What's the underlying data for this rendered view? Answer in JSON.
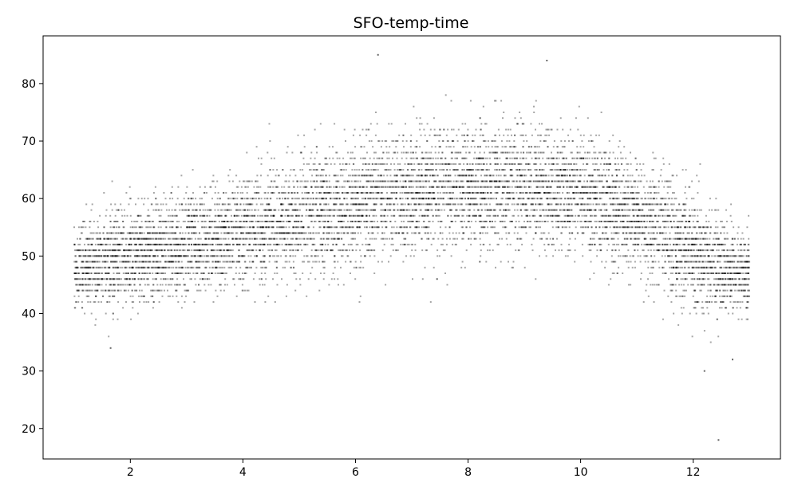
{
  "chart_data": {
    "type": "scatter",
    "title": "SFO-temp-time",
    "xlabel": "",
    "ylabel": "",
    "xlim": [
      0.45,
      13.55
    ],
    "ylim": [
      14.7,
      88.3
    ],
    "x_ticks": [
      2,
      4,
      6,
      8,
      10,
      12
    ],
    "y_ticks": [
      20,
      30,
      40,
      50,
      60,
      70,
      80
    ],
    "x_tick_labels": [
      "2",
      "4",
      "6",
      "8",
      "10",
      "12"
    ],
    "y_tick_labels": [
      "20",
      "30",
      "40",
      "50",
      "60",
      "70",
      "80"
    ],
    "grid": false,
    "legend": "none",
    "point_color": "#000000",
    "point_alpha": 0.35,
    "x_domain": [
      1.0,
      13.0
    ],
    "y_step": 1,
    "density_profile": {
      "x": [
        1.0,
        1.5,
        2.0,
        2.5,
        3.0,
        3.5,
        4.0,
        4.5,
        5.0,
        5.5,
        6.0,
        6.5,
        7.0,
        7.5,
        8.0,
        8.5,
        9.0,
        9.5,
        10.0,
        10.5,
        11.0,
        11.5,
        12.0,
        12.5,
        13.0
      ],
      "mean": [
        48,
        49,
        50,
        51,
        52,
        53,
        54,
        56,
        57,
        58,
        59,
        60,
        61,
        61.5,
        62,
        62,
        62,
        61.5,
        61,
        59,
        57,
        54,
        51,
        48,
        47
      ],
      "sd": [
        3.5,
        4,
        4,
        4,
        4.2,
        4.4,
        4.6,
        4.8,
        5,
        5.2,
        5.2,
        5.2,
        5.2,
        5,
        5,
        5,
        5,
        5,
        5,
        5,
        5,
        5,
        5,
        4,
        3.5
      ]
    },
    "notable_points": [
      {
        "x": 6.4,
        "y": 85
      },
      {
        "x": 9.4,
        "y": 84
      },
      {
        "x": 1.65,
        "y": 34
      },
      {
        "x": 7.45,
        "y": 46
      },
      {
        "x": 12.2,
        "y": 30
      },
      {
        "x": 12.7,
        "y": 32
      },
      {
        "x": 12.45,
        "y": 18
      }
    ]
  }
}
